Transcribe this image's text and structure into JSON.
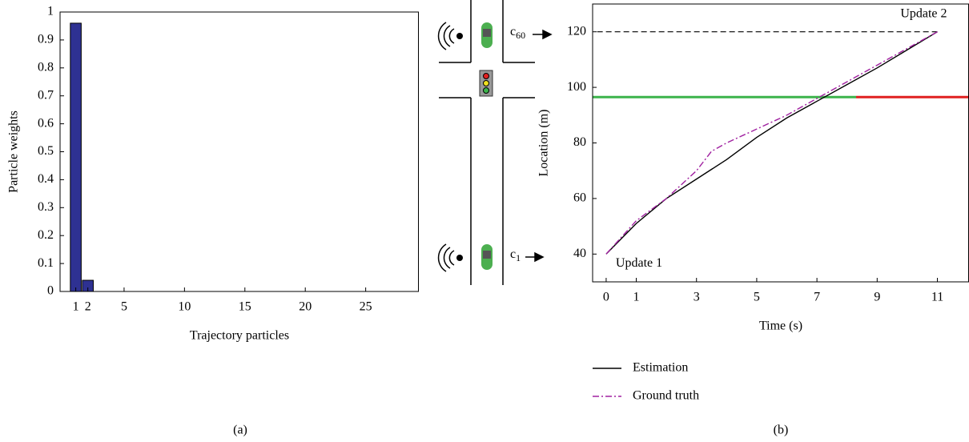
{
  "chart_data": [
    {
      "type": "bar",
      "xlabel": "Trajectory particles",
      "ylabel": "Particle weights",
      "x": [
        1,
        2
      ],
      "values": [
        0.96,
        0.04
      ],
      "color": "#2e3192",
      "xlim": [
        -0.3,
        29.4
      ],
      "xticks": [
        1,
        2,
        5,
        10,
        15,
        20,
        25
      ],
      "ylim": [
        0,
        1
      ],
      "yticks": [
        0,
        0.1,
        0.2,
        0.3,
        0.4,
        0.5,
        0.6,
        0.7,
        0.8,
        0.9,
        1
      ],
      "caption": "(a)"
    },
    {
      "type": "line",
      "xlabel": "Time (s)",
      "ylabel": "Location (m)",
      "series": [
        {
          "name": "Estimation",
          "color": "#000000",
          "style": "solid",
          "x": [
            0,
            1,
            2,
            3,
            4,
            5,
            6,
            7,
            8,
            9,
            10,
            11
          ],
          "values": [
            40,
            51,
            60,
            67,
            74,
            82,
            89,
            95,
            101,
            107,
            113.5,
            120
          ]
        },
        {
          "name": "Ground truth",
          "color": "#a020a0",
          "style": "dashdot",
          "x": [
            0,
            1,
            2,
            3,
            3.5,
            4,
            5,
            6,
            7,
            8,
            9,
            10,
            11
          ],
          "values": [
            40,
            52,
            60,
            70,
            77,
            80,
            85,
            90,
            96,
            102,
            108,
            114,
            120
          ]
        }
      ],
      "reference_lines": [
        {
          "y": 120,
          "x": [
            -0.3,
            11
          ],
          "color": "#000000",
          "style": "dashed"
        },
        {
          "y": 96.5,
          "x": [
            -0.45,
            8.3
          ],
          "color": "#3cb44b",
          "style": "solid"
        },
        {
          "y": 96.5,
          "x": [
            8.3,
            12.05
          ],
          "color": "#e02020",
          "style": "solid"
        }
      ],
      "annotations": [
        "Update 1",
        "Update 2"
      ],
      "xlim": [
        -0.45,
        12.05
      ],
      "xticks": [
        0,
        1,
        3,
        5,
        7,
        9,
        11
      ],
      "ylim": [
        30,
        130
      ],
      "yticks": [
        40,
        60,
        80,
        100,
        120
      ],
      "legend": "bottom",
      "caption": "(b)"
    }
  ],
  "diagram": {
    "labels": [
      {
        "base": "c",
        "sub": "60"
      },
      {
        "base": "c",
        "sub": "1"
      }
    ]
  }
}
